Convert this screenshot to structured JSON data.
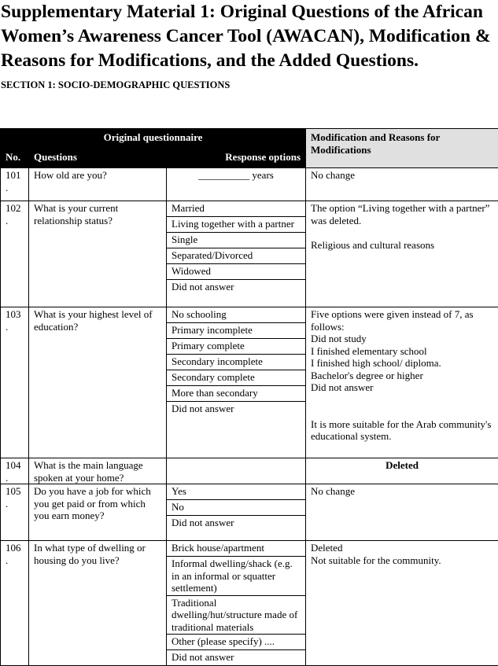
{
  "title": "Supplementary Material 1: Original Questions of the African Women’s Awareness Cancer Tool (AWACAN), Modification & Reasons for Modifications, and the Added Questions.",
  "section": "SECTION 1: SOCIO-DEMOGRAPHIC QUESTIONS",
  "table": {
    "header_original": "Original questionnaire",
    "header_modification": "Modification and Reasons for Modifications",
    "col_no": "No.",
    "col_questions": "Questions",
    "col_response": "Response options",
    "rows": [
      {
        "no": "101\n.",
        "question": "How old are you?",
        "options": [
          "__________   years"
        ],
        "modification": "No change"
      },
      {
        "no": "102\n.",
        "question": "What is your current relationship status?",
        "options": [
          "Married",
          "Living together with a partner",
          "Single",
          "Separated/Divorced",
          "Widowed",
          "Did not answer"
        ],
        "modification": "The option “Living together with a partner” was deleted.\n\nReligious and cultural reasons"
      },
      {
        "no": "103\n.",
        "question": "What is your highest level of education?",
        "options": [
          "No schooling",
          "Primary incomplete",
          "Primary complete",
          "Secondary incomplete",
          "Secondary complete",
          "More than secondary",
          "Did not answer"
        ],
        "modification": "Five options were given instead of 7, as follows:\nDid not study\nI finished elementary school\nI finished high school/ diploma.\nBachelor's degree or higher\nDid not answer\n\n\nIt is more suitable for the Arab community's educational system."
      },
      {
        "no": "104\n.",
        "question": "What is the main language spoken at your home?",
        "options": [
          ""
        ],
        "modification": "Deleted"
      },
      {
        "no": "105\n.",
        "question": "Do you have a job for which you get paid or from which you earn money?",
        "options": [
          "Yes",
          "No",
          "Did not answer"
        ],
        "modification": "No change"
      },
      {
        "no": "106\n.",
        "question": "In what type of dwelling or housing do you live?",
        "options": [
          "Brick house/apartment",
          "Informal dwelling/shack (e.g. in an informal or squatter settlement)",
          "Traditional dwelling/hut/structure made of traditional materials",
          "Other (please specify) ....",
          "Did not answer"
        ],
        "modification": "Deleted\nNot suitable for the community."
      }
    ]
  }
}
